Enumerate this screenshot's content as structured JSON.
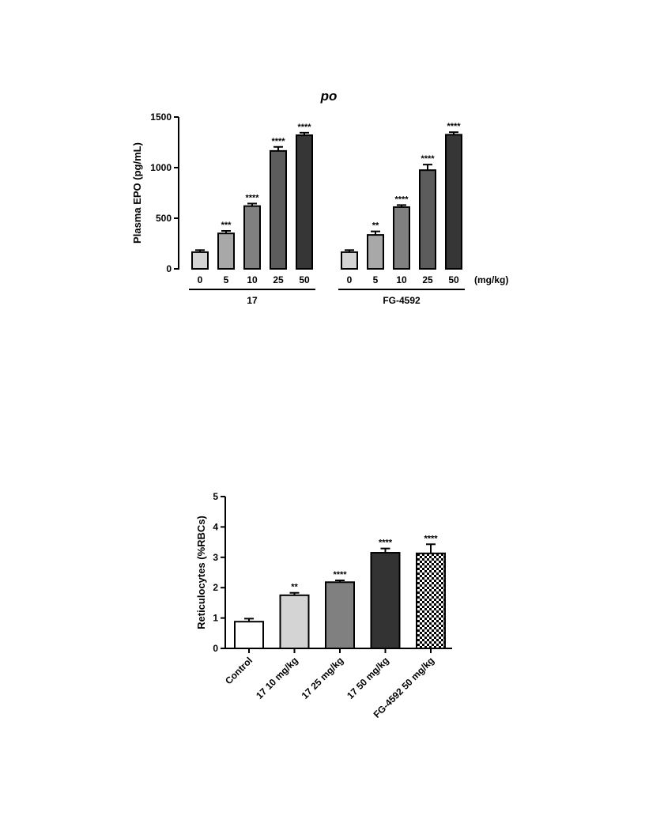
{
  "chart_data": [
    {
      "type": "bar",
      "title": "po",
      "ylabel": "Plasma EPO (pg/mL)",
      "xlabel": "",
      "unit_label": "(mg/kg)",
      "ylim": [
        0,
        1500
      ],
      "yticks": [
        0,
        500,
        1000,
        1500
      ],
      "groups": [
        {
          "name": "17",
          "categories": [
            "0",
            "5",
            "10",
            "25",
            "50"
          ],
          "values": [
            165,
            350,
            620,
            1165,
            1320
          ],
          "errors": [
            20,
            25,
            25,
            40,
            25
          ],
          "significance": [
            "",
            "***",
            "****",
            "****",
            "****"
          ],
          "colors": [
            "#d4d4d4",
            "#a8a8a8",
            "#808080",
            "#5c5c5c",
            "#363636"
          ]
        },
        {
          "name": "FG-4592",
          "categories": [
            "0",
            "5",
            "10",
            "25",
            "50"
          ],
          "values": [
            165,
            335,
            610,
            975,
            1325
          ],
          "errors": [
            20,
            35,
            20,
            55,
            25
          ],
          "significance": [
            "",
            "**",
            "****",
            "****",
            "****"
          ],
          "colors": [
            "#d4d4d4",
            "#a8a8a8",
            "#808080",
            "#5c5c5c",
            "#363636"
          ]
        }
      ],
      "grid": false,
      "legend": "none"
    },
    {
      "type": "bar",
      "ylabel": "Reticulocytes (%RBCs)",
      "xlabel": "",
      "ylim": [
        0,
        5
      ],
      "yticks": [
        0,
        1,
        2,
        3,
        4,
        5
      ],
      "categories": [
        "Control",
        "17 10 mg/kg",
        "17 25 mg/kg",
        "17 50 mg/kg",
        "FG-4592 50 mg/kg"
      ],
      "values": [
        0.88,
        1.75,
        2.18,
        3.15,
        3.13
      ],
      "errors": [
        0.1,
        0.08,
        0.06,
        0.14,
        0.3
      ],
      "significance": [
        "",
        "**",
        "****",
        "****",
        "****"
      ],
      "colors": [
        "#ffffff",
        "#d4d4d4",
        "#808080",
        "#333333",
        "checkered"
      ],
      "grid": false,
      "legend": "none"
    }
  ]
}
